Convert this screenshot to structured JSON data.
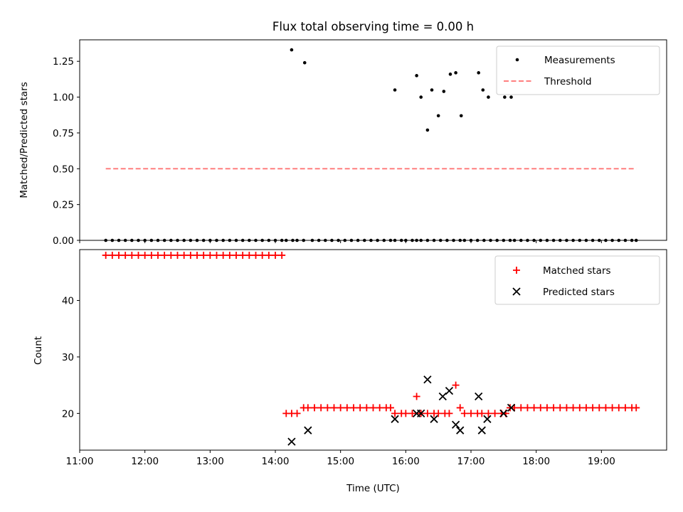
{
  "chart_data": [
    {
      "type": "scatter",
      "title": "Flux total observing time = 0.00 h",
      "xlabel": "",
      "ylabel": "Matched/Predicted stars",
      "xlim": [
        "11:00",
        "20:00"
      ],
      "ylim": [
        0,
        1.4
      ],
      "yticks": [
        "0.00",
        "0.25",
        "0.50",
        "0.75",
        "1.00",
        "1.25"
      ],
      "legend": "top-right",
      "series": [
        {
          "name": "Measurements",
          "marker": "dot",
          "color": "#000000",
          "x": [
            "11:24",
            "11:30",
            "11:36",
            "11:42",
            "11:48",
            "11:54",
            "12:00",
            "12:06",
            "12:12",
            "12:18",
            "12:24",
            "12:30",
            "12:36",
            "12:42",
            "12:48",
            "12:54",
            "13:00",
            "13:06",
            "13:12",
            "13:18",
            "13:24",
            "13:30",
            "13:36",
            "13:42",
            "13:48",
            "13:54",
            "14:00",
            "14:06",
            "14:10",
            "14:16",
            "14:20",
            "14:26",
            "14:34",
            "14:40",
            "14:46",
            "14:52",
            "14:58",
            "15:04",
            "15:10",
            "15:16",
            "15:22",
            "15:28",
            "15:34",
            "15:40",
            "15:46",
            "15:50",
            "15:56",
            "16:00",
            "16:06",
            "16:10",
            "16:14",
            "16:20",
            "16:26",
            "16:32",
            "16:38",
            "16:44",
            "16:50",
            "16:54",
            "17:00",
            "17:06",
            "17:12",
            "17:18",
            "17:24",
            "17:30",
            "17:36",
            "17:40",
            "17:46",
            "17:52",
            "17:58",
            "18:04",
            "18:10",
            "18:16",
            "18:22",
            "18:28",
            "18:34",
            "18:40",
            "18:46",
            "18:52",
            "18:58",
            "19:04",
            "19:10",
            "19:16",
            "19:22",
            "19:28",
            "19:32",
            "14:15",
            "14:27",
            "15:50",
            "16:10",
            "16:14",
            "16:20",
            "16:24",
            "16:30",
            "16:35",
            "16:41",
            "16:46",
            "16:51",
            "17:07",
            "17:11",
            "17:16",
            "17:31",
            "17:37"
          ],
          "y": [
            0,
            0,
            0,
            0,
            0,
            0,
            0,
            0,
            0,
            0,
            0,
            0,
            0,
            0,
            0,
            0,
            0,
            0,
            0,
            0,
            0,
            0,
            0,
            0,
            0,
            0,
            0,
            0,
            0,
            0,
            0,
            0,
            0,
            0,
            0,
            0,
            0,
            0,
            0,
            0,
            0,
            0,
            0,
            0,
            0,
            0,
            0,
            0,
            0,
            0,
            0,
            0,
            0,
            0,
            0,
            0,
            0,
            0,
            0,
            0,
            0,
            0,
            0,
            0,
            0,
            0,
            0,
            0,
            0,
            0,
            0,
            0,
            0,
            0,
            0,
            0,
            0,
            0,
            0,
            0,
            0,
            0,
            0,
            0,
            0,
            1.33,
            1.24,
            1.05,
            1.15,
            1.0,
            0.77,
            1.05,
            0.87,
            1.04,
            1.16,
            1.17,
            0.87,
            1.17,
            1.05,
            1.0,
            1.0,
            1.0
          ]
        },
        {
          "name": "Threshold",
          "marker": "dashed-line",
          "color": "#ff7f7f",
          "x": [
            "11:24",
            "19:32"
          ],
          "y": [
            0.5,
            0.5
          ]
        }
      ]
    },
    {
      "type": "scatter",
      "title": "",
      "xlabel": "Time (UTC)",
      "ylabel": "Count",
      "xlim": [
        "11:00",
        "20:00"
      ],
      "ylim": [
        13.5,
        49
      ],
      "xticks": [
        "11:00",
        "12:00",
        "13:00",
        "14:00",
        "15:00",
        "16:00",
        "17:00",
        "18:00",
        "19:00"
      ],
      "yticks": [
        "20",
        "30",
        "40"
      ],
      "legend": "top-right",
      "series": [
        {
          "name": "Matched stars",
          "marker": "plus",
          "color": "#ff0000",
          "x": [
            "11:24",
            "11:30",
            "11:36",
            "11:42",
            "11:48",
            "11:54",
            "12:00",
            "12:06",
            "12:12",
            "12:18",
            "12:24",
            "12:30",
            "12:36",
            "12:42",
            "12:48",
            "12:54",
            "13:00",
            "13:06",
            "13:12",
            "13:18",
            "13:24",
            "13:30",
            "13:36",
            "13:42",
            "13:48",
            "13:54",
            "14:00",
            "14:06",
            "14:10",
            "14:15",
            "14:20",
            "14:26",
            "14:30",
            "14:36",
            "14:42",
            "14:48",
            "14:54",
            "15:00",
            "15:06",
            "15:12",
            "15:18",
            "15:24",
            "15:30",
            "15:36",
            "15:42",
            "15:46",
            "15:50",
            "15:56",
            "16:00",
            "16:06",
            "16:10",
            "16:14",
            "16:20",
            "16:26",
            "16:30",
            "16:36",
            "16:40",
            "16:46",
            "16:50",
            "16:54",
            "17:00",
            "17:06",
            "17:10",
            "17:16",
            "17:22",
            "17:28",
            "17:32",
            "17:36",
            "17:40",
            "17:46",
            "17:52",
            "17:58",
            "18:04",
            "18:10",
            "18:16",
            "18:22",
            "18:28",
            "18:34",
            "18:40",
            "18:46",
            "18:52",
            "18:58",
            "19:04",
            "19:10",
            "19:16",
            "19:22",
            "19:28",
            "19:32"
          ],
          "y": [
            48,
            48,
            48,
            48,
            48,
            48,
            48,
            48,
            48,
            48,
            48,
            48,
            48,
            48,
            48,
            48,
            48,
            48,
            48,
            48,
            48,
            48,
            48,
            48,
            48,
            48,
            48,
            48,
            20,
            20,
            20,
            21,
            21,
            21,
            21,
            21,
            21,
            21,
            21,
            21,
            21,
            21,
            21,
            21,
            21,
            21,
            20,
            20,
            20,
            20,
            23,
            20,
            20,
            20,
            20,
            20,
            20,
            25,
            21,
            20,
            20,
            20,
            20,
            20,
            20,
            20,
            20,
            21,
            21,
            21,
            21,
            21,
            21,
            21,
            21,
            21,
            21,
            21,
            21,
            21,
            21,
            21,
            21,
            21,
            21,
            21,
            21,
            21
          ]
        },
        {
          "name": "Predicted stars",
          "marker": "x",
          "color": "#000000",
          "x": [
            "14:15",
            "14:30",
            "15:50",
            "16:10",
            "16:14",
            "16:20",
            "16:26",
            "16:34",
            "16:40",
            "16:46",
            "16:50",
            "17:07",
            "17:10",
            "17:15",
            "17:30",
            "17:37"
          ],
          "y": [
            15,
            17,
            19,
            20,
            20,
            26,
            19,
            23,
            24,
            18,
            17,
            23,
            17,
            19,
            20,
            21
          ]
        }
      ]
    }
  ]
}
